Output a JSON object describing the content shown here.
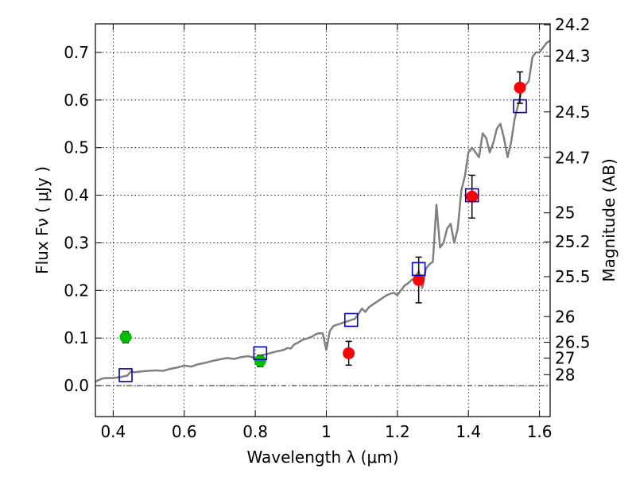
{
  "chart_data": {
    "type": "scatter",
    "title": "",
    "xlabel": "Wavelength  λ (μm)",
    "ylabel": "Flux  Fν  ( μJy )",
    "y2label": "Magnitude (AB)",
    "xlim": [
      0.35,
      1.63
    ],
    "ylim": [
      -0.065,
      0.76
    ],
    "grid": true,
    "x_ticks": [
      0.4,
      0.6,
      0.8,
      1.0,
      1.2,
      1.4,
      1.6
    ],
    "x_tick_labels": [
      "0.4",
      "0.6",
      "0.8",
      "1",
      "1.2",
      "1.4",
      "1.6"
    ],
    "y_ticks": [
      0.0,
      0.1,
      0.2,
      0.3,
      0.4,
      0.5,
      0.6,
      0.7
    ],
    "y_tick_labels": [
      "0.0",
      "0.1",
      "0.2",
      "0.3",
      "0.4",
      "0.5",
      "0.6",
      "0.7"
    ],
    "y2_ticks": [
      {
        "label": "24.2",
        "flux": 0.758
      },
      {
        "label": "24.3",
        "flux": 0.692
      },
      {
        "label": "24.5",
        "flux": 0.575
      },
      {
        "label": "24.7",
        "flux": 0.479
      },
      {
        "label": "25",
        "flux": 0.363
      },
      {
        "label": "25.2",
        "flux": 0.302
      },
      {
        "label": "25.5",
        "flux": 0.229
      },
      {
        "label": "26",
        "flux": 0.145
      },
      {
        "label": "26.5",
        "flux": 0.091
      },
      {
        "label": "27",
        "flux": 0.058
      },
      {
        "label": "28",
        "flux": 0.023
      }
    ],
    "series": [
      {
        "kind": "line",
        "color": "#808080",
        "points": [
          [
            0.35,
            0.008
          ],
          [
            0.36,
            0.012
          ],
          [
            0.37,
            0.015
          ],
          [
            0.38,
            0.016
          ],
          [
            0.4,
            0.016
          ],
          [
            0.42,
            0.018
          ],
          [
            0.44,
            0.021
          ],
          [
            0.45,
            0.03
          ],
          [
            0.46,
            0.028
          ],
          [
            0.48,
            0.03
          ],
          [
            0.5,
            0.031
          ],
          [
            0.52,
            0.032
          ],
          [
            0.54,
            0.031
          ],
          [
            0.56,
            0.035
          ],
          [
            0.58,
            0.038
          ],
          [
            0.6,
            0.042
          ],
          [
            0.62,
            0.04
          ],
          [
            0.64,
            0.045
          ],
          [
            0.66,
            0.048
          ],
          [
            0.68,
            0.052
          ],
          [
            0.7,
            0.055
          ],
          [
            0.72,
            0.058
          ],
          [
            0.74,
            0.056
          ],
          [
            0.76,
            0.06
          ],
          [
            0.78,
            0.062
          ],
          [
            0.8,
            0.058
          ],
          [
            0.82,
            0.064
          ],
          [
            0.84,
            0.068
          ],
          [
            0.86,
            0.072
          ],
          [
            0.88,
            0.075
          ],
          [
            0.89,
            0.079
          ],
          [
            0.9,
            0.078
          ],
          [
            0.91,
            0.087
          ],
          [
            0.92,
            0.09
          ],
          [
            0.93,
            0.095
          ],
          [
            0.94,
            0.098
          ],
          [
            0.95,
            0.1
          ],
          [
            0.96,
            0.103
          ],
          [
            0.97,
            0.108
          ],
          [
            0.98,
            0.11
          ],
          [
            0.99,
            0.11
          ],
          [
            1.0,
            0.075
          ],
          [
            1.01,
            0.115
          ],
          [
            1.02,
            0.125
          ],
          [
            1.03,
            0.128
          ],
          [
            1.04,
            0.13
          ],
          [
            1.05,
            0.133
          ],
          [
            1.06,
            0.135
          ],
          [
            1.07,
            0.138
          ],
          [
            1.08,
            0.14
          ],
          [
            1.09,
            0.15
          ],
          [
            1.1,
            0.162
          ],
          [
            1.11,
            0.155
          ],
          [
            1.12,
            0.165
          ],
          [
            1.13,
            0.17
          ],
          [
            1.14,
            0.175
          ],
          [
            1.15,
            0.18
          ],
          [
            1.16,
            0.185
          ],
          [
            1.17,
            0.19
          ],
          [
            1.18,
            0.193
          ],
          [
            1.19,
            0.195
          ],
          [
            1.2,
            0.19
          ],
          [
            1.21,
            0.2
          ],
          [
            1.22,
            0.21
          ],
          [
            1.23,
            0.215
          ],
          [
            1.24,
            0.222
          ],
          [
            1.25,
            0.226
          ],
          [
            1.26,
            0.24
          ],
          [
            1.27,
            0.205
          ],
          [
            1.28,
            0.245
          ],
          [
            1.29,
            0.255
          ],
          [
            1.3,
            0.26
          ],
          [
            1.31,
            0.38
          ],
          [
            1.32,
            0.29
          ],
          [
            1.33,
            0.3
          ],
          [
            1.34,
            0.33
          ],
          [
            1.35,
            0.34
          ],
          [
            1.36,
            0.3
          ],
          [
            1.37,
            0.33
          ],
          [
            1.38,
            0.41
          ],
          [
            1.39,
            0.44
          ],
          [
            1.4,
            0.49
          ],
          [
            1.41,
            0.5
          ],
          [
            1.42,
            0.49
          ],
          [
            1.43,
            0.48
          ],
          [
            1.44,
            0.53
          ],
          [
            1.45,
            0.52
          ],
          [
            1.46,
            0.49
          ],
          [
            1.47,
            0.51
          ],
          [
            1.48,
            0.54
          ],
          [
            1.49,
            0.55
          ],
          [
            1.5,
            0.52
          ],
          [
            1.51,
            0.48
          ],
          [
            1.52,
            0.51
          ],
          [
            1.53,
            0.56
          ],
          [
            1.54,
            0.59
          ],
          [
            1.55,
            0.62
          ],
          [
            1.56,
            0.63
          ],
          [
            1.57,
            0.64
          ],
          [
            1.58,
            0.69
          ],
          [
            1.59,
            0.7
          ],
          [
            1.6,
            0.7
          ],
          [
            1.61,
            0.71
          ],
          [
            1.62,
            0.72
          ],
          [
            1.63,
            0.725
          ]
        ]
      },
      {
        "kind": "points",
        "marker": "circle",
        "color": "#ff0000",
        "points": [
          {
            "x": 1.063,
            "y": 0.068,
            "err": 0.025
          },
          {
            "x": 1.26,
            "y": 0.222,
            "err": 0.048
          },
          {
            "x": 1.41,
            "y": 0.397,
            "err": 0.045
          },
          {
            "x": 1.545,
            "y": 0.626,
            "err": 0.033
          }
        ]
      },
      {
        "kind": "points",
        "marker": "circle",
        "color": "#00bb00",
        "points": [
          {
            "x": 0.435,
            "y": 0.102,
            "err": 0.012
          },
          {
            "x": 0.814,
            "y": 0.052,
            "err": 0.012
          }
        ]
      },
      {
        "kind": "points",
        "marker": "square",
        "color": "#0000cc",
        "points": [
          {
            "x": 0.435,
            "y": 0.022
          },
          {
            "x": 0.814,
            "y": 0.068
          },
          {
            "x": 1.07,
            "y": 0.138
          },
          {
            "x": 1.26,
            "y": 0.245
          },
          {
            "x": 1.41,
            "y": 0.4
          },
          {
            "x": 1.545,
            "y": 0.587
          }
        ]
      }
    ]
  }
}
